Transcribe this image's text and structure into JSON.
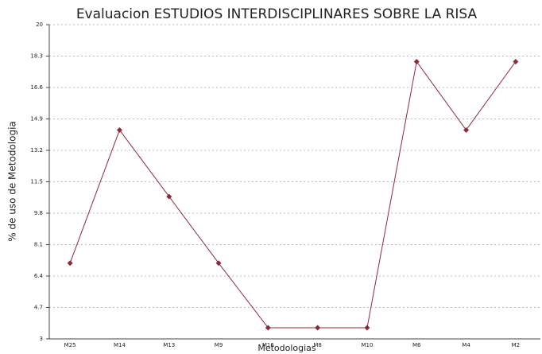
{
  "chart_data": {
    "type": "line",
    "title": "Evaluacion ESTUDIOS INTERDISCIPLINARES SOBRE LA RISA",
    "x_label": "Metodologias",
    "y_label": "% de uso de Metodologia",
    "categories": [
      "M25",
      "M14",
      "M13",
      "M9",
      "M16",
      "M8",
      "M10",
      "M6",
      "M4",
      "M2"
    ],
    "series": [
      {
        "name": "Metodologias",
        "color": "#8b2c3c",
        "values": [
          7.1,
          14.3,
          10.7,
          7.1,
          3.6,
          3.6,
          3.6,
          18.0,
          14.3,
          18.0
        ]
      }
    ],
    "ylim": [
      3,
      20
    ],
    "yticks": [
      3,
      4.7,
      6.4,
      8.1,
      9.8,
      11.5,
      13.2,
      14.9,
      16.6,
      18.3,
      20
    ],
    "grid": true
  }
}
